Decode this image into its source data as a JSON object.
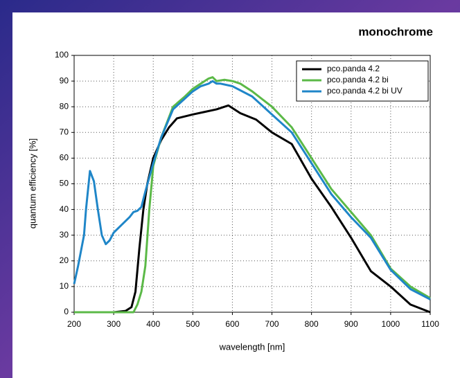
{
  "chart_data": {
    "type": "line",
    "title": "monochrome",
    "x_label": "wavelength [nm]",
    "y_label": "quantum efficiency [%]",
    "xlim": [
      200,
      1100
    ],
    "xticks": [
      200,
      300,
      400,
      500,
      600,
      700,
      800,
      900,
      1000,
      1100
    ],
    "ylim": [
      0,
      100
    ],
    "yticks": [
      0,
      10,
      20,
      30,
      40,
      50,
      60,
      70,
      80,
      90,
      100
    ],
    "grid": true,
    "legend": "upper right",
    "series": [
      {
        "name": "pco.panda 4.2",
        "color": "#000000",
        "x": [
          200,
          300,
          330,
          345,
          355,
          365,
          375,
          385,
          400,
          420,
          440,
          460,
          500,
          530,
          560,
          580,
          590,
          620,
          660,
          700,
          750,
          800,
          850,
          900,
          950,
          1000,
          1050,
          1100
        ],
        "values": [
          0,
          0,
          0.5,
          2,
          8,
          25,
          40,
          50,
          60,
          67,
          72,
          75.5,
          77,
          78,
          79,
          80,
          80.5,
          77.5,
          75,
          70,
          65.5,
          52,
          41,
          29,
          16,
          10,
          3,
          0
        ]
      },
      {
        "name": "pco.panda 4.2 bi",
        "color": "#5bb947",
        "x": [
          200,
          350,
          360,
          370,
          380,
          390,
          400,
          420,
          450,
          480,
          500,
          520,
          540,
          550,
          560,
          580,
          600,
          620,
          650,
          700,
          750,
          800,
          850,
          900,
          950,
          1000,
          1050,
          1100
        ],
        "values": [
          0,
          0,
          3,
          8,
          18,
          40,
          57,
          68,
          80,
          84,
          87,
          89,
          91,
          91.5,
          90,
          90.5,
          90,
          89,
          86,
          80,
          72,
          60,
          48,
          39,
          30,
          17,
          10,
          5.5
        ]
      },
      {
        "name": "pco.panda 4.2 bi UV",
        "color": "#1f86c8",
        "x": [
          200,
          210,
          225,
          230,
          240,
          250,
          260,
          270,
          280,
          290,
          300,
          320,
          340,
          350,
          360,
          370,
          380,
          400,
          420,
          450,
          500,
          520,
          540,
          550,
          560,
          570,
          600,
          650,
          700,
          750,
          800,
          850,
          900,
          950,
          1000,
          1050,
          1100
        ],
        "values": [
          11,
          18,
          30,
          40,
          55,
          51,
          40,
          30,
          26.5,
          28,
          31,
          34,
          37,
          39,
          39.5,
          41,
          47,
          58,
          68,
          79,
          86,
          88,
          89,
          90,
          89,
          89,
          88,
          84,
          77,
          70,
          58,
          46,
          37,
          29,
          16.5,
          9,
          5
        ]
      }
    ]
  }
}
